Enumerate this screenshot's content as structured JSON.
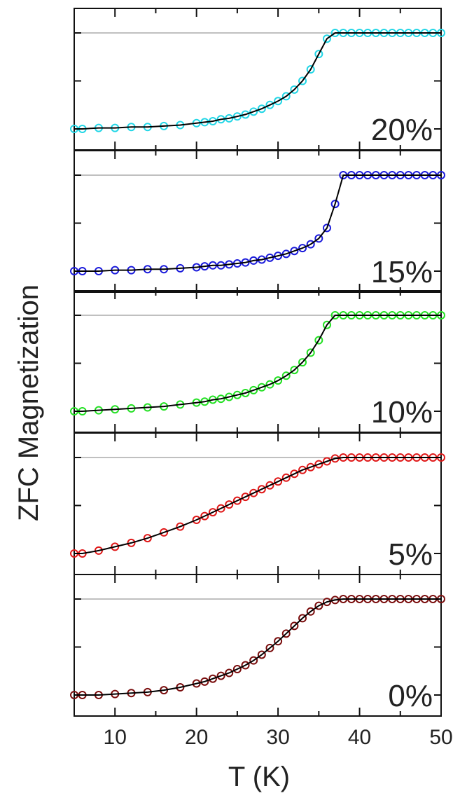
{
  "chart_data": {
    "type": "scatter",
    "xlabel": "T (K)",
    "ylabel": "ZFC Magnetization",
    "xlim": [
      5,
      50
    ],
    "x_ticks": [
      10,
      20,
      30,
      40,
      50
    ],
    "ylim": [
      0,
      1
    ],
    "grid": false,
    "reference_line": 1.0,
    "panels": [
      {
        "label": "20%",
        "color": "#22d6e6",
        "x": [
          5,
          6,
          8,
          10,
          12,
          14,
          16,
          18,
          20,
          21,
          22,
          23,
          24,
          25,
          26,
          27,
          28,
          29,
          30,
          31,
          32,
          33,
          34,
          35,
          36,
          37,
          38,
          39,
          40,
          41,
          42,
          43,
          44,
          45,
          46,
          47,
          48,
          49,
          50
        ],
        "values": [
          0.0,
          0.0,
          0.01,
          0.01,
          0.02,
          0.02,
          0.03,
          0.04,
          0.06,
          0.07,
          0.08,
          0.1,
          0.11,
          0.13,
          0.15,
          0.18,
          0.21,
          0.25,
          0.29,
          0.34,
          0.41,
          0.5,
          0.62,
          0.78,
          0.94,
          1.0,
          1.0,
          1.0,
          1.0,
          1.0,
          1.0,
          1.0,
          1.0,
          1.0,
          1.0,
          1.0,
          1.0,
          1.0,
          1.0
        ]
      },
      {
        "label": "15%",
        "color": "#1a1adb",
        "x": [
          5,
          6,
          8,
          10,
          12,
          14,
          16,
          18,
          20,
          21,
          22,
          23,
          24,
          25,
          26,
          27,
          28,
          29,
          30,
          31,
          32,
          33,
          34,
          35,
          36,
          37,
          38,
          39,
          40,
          41,
          42,
          43,
          44,
          45,
          46,
          47,
          48,
          49,
          50
        ],
        "values": [
          0.0,
          0.0,
          0.0,
          0.01,
          0.01,
          0.02,
          0.02,
          0.03,
          0.04,
          0.05,
          0.06,
          0.06,
          0.07,
          0.08,
          0.09,
          0.11,
          0.12,
          0.14,
          0.16,
          0.18,
          0.21,
          0.24,
          0.28,
          0.34,
          0.45,
          0.7,
          1.0,
          1.0,
          1.0,
          1.0,
          1.0,
          1.0,
          1.0,
          1.0,
          1.0,
          1.0,
          1.0,
          1.0,
          1.0
        ]
      },
      {
        "label": "10%",
        "color": "#22e022",
        "x": [
          5,
          6,
          8,
          10,
          12,
          14,
          16,
          18,
          20,
          21,
          22,
          23,
          24,
          25,
          26,
          27,
          28,
          29,
          30,
          31,
          32,
          33,
          34,
          35,
          36,
          37,
          38,
          39,
          40,
          41,
          42,
          43,
          44,
          45,
          46,
          47,
          48,
          49,
          50
        ],
        "values": [
          0.0,
          0.0,
          0.01,
          0.02,
          0.03,
          0.04,
          0.05,
          0.07,
          0.09,
          0.1,
          0.12,
          0.13,
          0.15,
          0.17,
          0.19,
          0.22,
          0.25,
          0.28,
          0.32,
          0.37,
          0.43,
          0.51,
          0.61,
          0.74,
          0.9,
          1.0,
          1.0,
          1.0,
          1.0,
          1.0,
          1.0,
          1.0,
          1.0,
          1.0,
          1.0,
          1.0,
          1.0,
          1.0,
          1.0
        ]
      },
      {
        "label": "5%",
        "color": "#e01818",
        "x": [
          5,
          6,
          8,
          10,
          12,
          14,
          16,
          18,
          20,
          21,
          22,
          23,
          24,
          25,
          26,
          27,
          28,
          29,
          30,
          31,
          32,
          33,
          34,
          35,
          36,
          37,
          38,
          39,
          40,
          41,
          42,
          43,
          44,
          45,
          46,
          47,
          48,
          49,
          50
        ],
        "values": [
          0.0,
          0.0,
          0.03,
          0.07,
          0.11,
          0.16,
          0.22,
          0.28,
          0.35,
          0.39,
          0.43,
          0.47,
          0.51,
          0.55,
          0.59,
          0.63,
          0.67,
          0.71,
          0.75,
          0.79,
          0.83,
          0.87,
          0.9,
          0.93,
          0.96,
          0.99,
          1.0,
          1.0,
          1.0,
          1.0,
          1.0,
          1.0,
          1.0,
          1.0,
          1.0,
          1.0,
          1.0,
          1.0,
          1.0
        ]
      },
      {
        "label": "0%",
        "color": "#7a0d0d",
        "x": [
          5,
          6,
          8,
          10,
          12,
          14,
          16,
          18,
          20,
          21,
          22,
          23,
          24,
          25,
          26,
          27,
          28,
          29,
          30,
          31,
          32,
          33,
          34,
          35,
          36,
          37,
          38,
          39,
          40,
          41,
          42,
          43,
          44,
          45,
          46,
          47,
          48,
          49,
          50
        ],
        "values": [
          0.0,
          0.0,
          0.0,
          0.01,
          0.02,
          0.03,
          0.05,
          0.08,
          0.12,
          0.14,
          0.17,
          0.2,
          0.23,
          0.27,
          0.31,
          0.36,
          0.42,
          0.49,
          0.56,
          0.64,
          0.72,
          0.8,
          0.87,
          0.93,
          0.97,
          0.99,
          1.0,
          1.0,
          1.0,
          1.0,
          1.0,
          1.0,
          1.0,
          1.0,
          1.0,
          1.0,
          1.0,
          1.0,
          1.0
        ]
      }
    ]
  }
}
